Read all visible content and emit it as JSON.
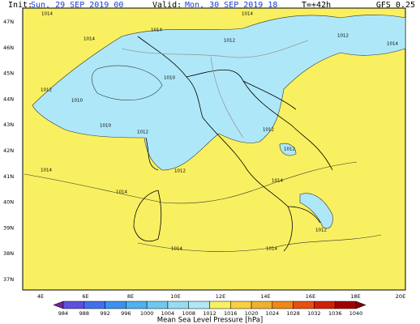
{
  "header": {
    "init_label": "Init:",
    "init": "Sun, 29 SEP 2019  00",
    "valid_label": "Valid:",
    "valid": "Mon, 30 SEP 2019  18",
    "step": "T=+42h",
    "model": "GFS 0.25"
  },
  "lat_labels": [
    "47N",
    "46N",
    "45N",
    "44N",
    "43N",
    "42N",
    "41N",
    "40N",
    "39N",
    "38N",
    "37N"
  ],
  "lon_labels": [
    "4E",
    "6E",
    "8E",
    "10E",
    "12E",
    "14E",
    "16E",
    "18E",
    "20E"
  ],
  "isobar_labels": [
    "1014",
    "1014",
    "1014",
    "1012",
    "1014",
    "1012",
    "1014",
    "1010",
    "1012",
    "1010",
    "1010",
    "1012",
    "1012",
    "1012",
    "1014",
    "1014",
    "1014",
    "1012",
    "1012",
    "1014",
    "1014"
  ],
  "colorbar": {
    "labels": [
      984,
      988,
      992,
      996,
      1000,
      1004,
      1008,
      1012,
      1016,
      1020,
      1024,
      1028,
      1032,
      1036,
      1040
    ],
    "title": "Mean Sea Level Pressure [hPa]"
  }
}
